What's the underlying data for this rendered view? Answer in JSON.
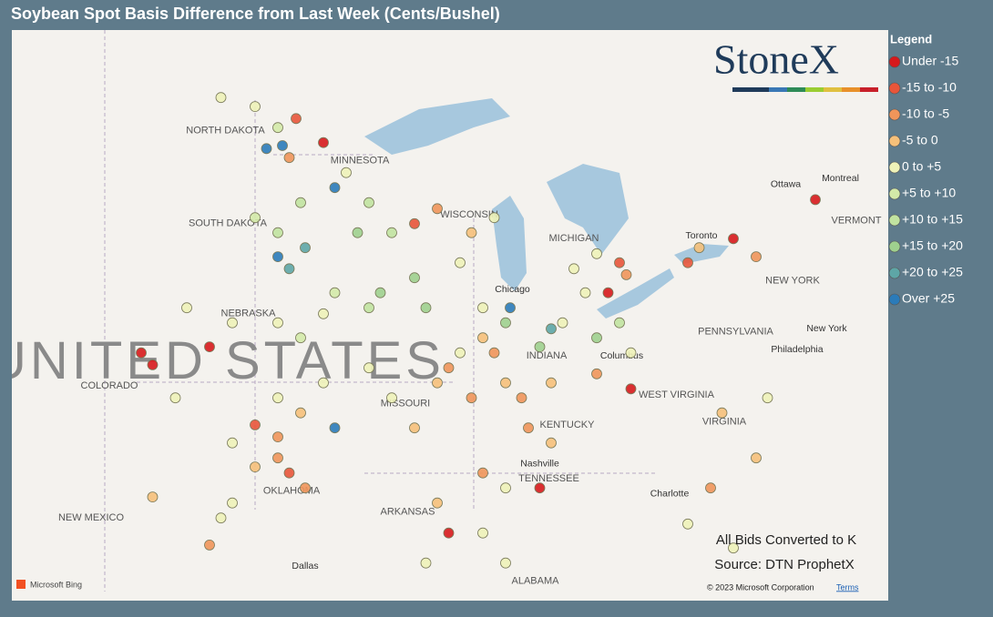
{
  "title": "Soybean Spot Basis Difference from Last Week (Cents/Bushel)",
  "legend": {
    "title": "Legend",
    "items": [
      {
        "label": "Under -15",
        "color": "#d7191c"
      },
      {
        "label": "-15 to -10",
        "color": "#e8553a"
      },
      {
        "label": "-10 to -5",
        "color": "#f0955a"
      },
      {
        "label": "-5 to 0",
        "color": "#f6c07a"
      },
      {
        "label": "0 to +5",
        "color": "#eef2b8"
      },
      {
        "label": "+5 to +10",
        "color": "#d4eaa8"
      },
      {
        "label": "+10 to +15",
        "color": "#c1e3a0"
      },
      {
        "label": "+15 to +20",
        "color": "#9fd08e"
      },
      {
        "label": "+20 to +25",
        "color": "#5ea6a6"
      },
      {
        "label": "Over +25",
        "color": "#2b7bb9"
      }
    ]
  },
  "logo": "StoneX",
  "notes": [
    "All Bids Converted to K",
    "Source: DTN ProphetX"
  ],
  "attribution": {
    "provider": "Microsoft Bing",
    "copyright": "© 2023 Microsoft Corporation",
    "terms": "Terms"
  },
  "country_label": {
    "text": "UNITED STATES",
    "lon": -100.7,
    "lat": 39.6
  },
  "labels": [
    {
      "text": "NORTH DAKOTA",
      "lon": -100.3,
      "lat": 47.4
    },
    {
      "text": "MINNESOTA",
      "lon": -94.4,
      "lat": 46.4
    },
    {
      "text": "SOUTH DAKOTA",
      "lon": -100.2,
      "lat": 44.3
    },
    {
      "text": "WISCONSIN",
      "lon": -89.6,
      "lat": 44.6
    },
    {
      "text": "NEBRASKA",
      "lon": -99.3,
      "lat": 41.3
    },
    {
      "text": "COLORADO",
      "lon": -105.4,
      "lat": 38.9
    },
    {
      "text": "MISSOURI",
      "lon": -92.4,
      "lat": 38.3
    },
    {
      "text": "OKLAHOMA",
      "lon": -97.4,
      "lat": 35.4
    },
    {
      "text": "ARKANSAS",
      "lon": -92.3,
      "lat": 34.7
    },
    {
      "text": "TENNESSEE",
      "lon": -86.1,
      "lat": 35.8
    },
    {
      "text": "KENTUCKY",
      "lon": -85.3,
      "lat": 37.6
    },
    {
      "text": "INDIANA",
      "lon": -86.2,
      "lat": 39.9
    },
    {
      "text": "WEST VIRGINIA",
      "lon": -80.5,
      "lat": 38.6
    },
    {
      "text": "VIRGINIA",
      "lon": -78.4,
      "lat": 37.7
    },
    {
      "text": "PENNSYLVANIA",
      "lon": -77.9,
      "lat": 40.7
    },
    {
      "text": "NEW YORK",
      "lon": -75.4,
      "lat": 42.4
    },
    {
      "text": "NEW MEXICO",
      "lon": -106.2,
      "lat": 34.5
    },
    {
      "text": "ALABAMA",
      "lon": -86.7,
      "lat": 32.4
    },
    {
      "text": "MICHIGAN",
      "lon": -85.0,
      "lat": 43.8
    },
    {
      "text": "VERMONT",
      "lon": -72.6,
      "lat": 44.4
    },
    {
      "text": "Chicago",
      "lon": -87.7,
      "lat": 42.1
    },
    {
      "text": "Ottawa",
      "lon": -75.7,
      "lat": 45.6
    },
    {
      "text": "Montreal",
      "lon": -73.3,
      "lat": 45.8
    },
    {
      "text": "Toronto",
      "lon": -79.4,
      "lat": 43.9
    },
    {
      "text": "Columbus",
      "lon": -82.9,
      "lat": 39.9
    },
    {
      "text": "Nashville",
      "lon": -86.5,
      "lat": 36.3
    },
    {
      "text": "Dallas",
      "lon": -96.8,
      "lat": 32.9
    },
    {
      "text": "Philadelphia",
      "lon": -75.2,
      "lat": 40.1
    },
    {
      "text": "New York",
      "lon": -73.9,
      "lat": 40.8
    },
    {
      "text": "Charlotte",
      "lon": -80.8,
      "lat": 35.3
    }
  ],
  "points": [
    [
      -100.5,
      48.5,
      4
    ],
    [
      -99,
      48.2,
      4
    ],
    [
      -98,
      47.5,
      5
    ],
    [
      -97.5,
      46.5,
      2
    ],
    [
      -97.2,
      47.8,
      1
    ],
    [
      -98.5,
      46.8,
      9
    ],
    [
      -97.8,
      46.9,
      9
    ],
    [
      -99,
      44.5,
      5
    ],
    [
      -98,
      44,
      6
    ],
    [
      -97,
      45,
      6
    ],
    [
      -96.8,
      43.5,
      8
    ],
    [
      -98,
      43.2,
      9
    ],
    [
      -97.5,
      42.8,
      8
    ],
    [
      -95,
      46,
      4
    ],
    [
      -94,
      45,
      6
    ],
    [
      -95.5,
      45.5,
      9
    ],
    [
      -96,
      47,
      0
    ],
    [
      -93,
      44,
      6
    ],
    [
      -92,
      44.3,
      1
    ],
    [
      -94.5,
      44,
      7
    ],
    [
      -93.5,
      42,
      7
    ],
    [
      -92,
      42.5,
      7
    ],
    [
      -94,
      41.5,
      6
    ],
    [
      -91.5,
      41.5,
      7
    ],
    [
      -95.5,
      42,
      5
    ],
    [
      -89.5,
      44,
      3
    ],
    [
      -90,
      43,
      4
    ],
    [
      -88.5,
      44.5,
      4
    ],
    [
      -91,
      44.8,
      2
    ],
    [
      -98,
      41,
      4
    ],
    [
      -100,
      41,
      4
    ],
    [
      -97,
      40.5,
      5
    ],
    [
      -96,
      41.3,
      4
    ],
    [
      -102,
      41.5,
      4
    ],
    [
      -101,
      40.2,
      0
    ],
    [
      -98,
      38.5,
      4
    ],
    [
      -97,
      38,
      3
    ],
    [
      -99,
      37.6,
      1
    ],
    [
      -96,
      39,
      4
    ],
    [
      -95.5,
      37.5,
      9
    ],
    [
      -98,
      37.2,
      2
    ],
    [
      -100,
      37,
      4
    ],
    [
      -98,
      36.5,
      2
    ],
    [
      -97.5,
      36,
      1
    ],
    [
      -99,
      36.2,
      3
    ],
    [
      -96.8,
      35.5,
      2
    ],
    [
      -100,
      35,
      4
    ],
    [
      -100.5,
      34.5,
      4
    ],
    [
      -101,
      33.6,
      2
    ],
    [
      -93,
      38.5,
      4
    ],
    [
      -91,
      39,
      3
    ],
    [
      -92,
      37.5,
      3
    ],
    [
      -90.5,
      39.5,
      2
    ],
    [
      -94,
      39.5,
      4
    ],
    [
      -89,
      40.5,
      3
    ],
    [
      -88.5,
      40,
      2
    ],
    [
      -90,
      40,
      4
    ],
    [
      -88,
      41,
      7
    ],
    [
      -89.5,
      38.5,
      2
    ],
    [
      -88,
      39,
      3
    ],
    [
      -87.8,
      41.5,
      9
    ],
    [
      -89,
      41.5,
      4
    ],
    [
      -86.5,
      40.2,
      7
    ],
    [
      -86,
      39,
      3
    ],
    [
      -87.3,
      38.5,
      2
    ],
    [
      -85.5,
      41,
      4
    ],
    [
      -86,
      40.8,
      8
    ],
    [
      -84,
      40.5,
      7
    ],
    [
      -83,
      41,
      6
    ],
    [
      -82.5,
      40,
      4
    ],
    [
      -84,
      39.3,
      2
    ],
    [
      -82.5,
      38.8,
      0
    ],
    [
      -85,
      42.8,
      4
    ],
    [
      -84,
      43.3,
      4
    ],
    [
      -83.5,
      42,
      0
    ],
    [
      -83,
      43,
      1
    ],
    [
      -82.7,
      42.6,
      2
    ],
    [
      -84.5,
      42,
      4
    ],
    [
      -80,
      43,
      1
    ],
    [
      -79.5,
      43.5,
      3
    ],
    [
      -78,
      43.8,
      0
    ],
    [
      -77,
      43.2,
      2
    ],
    [
      -74.4,
      45.1,
      0
    ],
    [
      -86,
      37,
      3
    ],
    [
      -87,
      37.5,
      2
    ],
    [
      -86.5,
      35.5,
      0
    ],
    [
      -88,
      35.5,
      4
    ],
    [
      -89,
      36,
      2
    ],
    [
      -91,
      35,
      3
    ],
    [
      -90.5,
      34,
      0
    ],
    [
      -91.5,
      33,
      4
    ],
    [
      -78.5,
      38,
      3
    ],
    [
      -77,
      36.5,
      3
    ],
    [
      -79,
      35.5,
      2
    ],
    [
      -80,
      34.3,
      4
    ],
    [
      -78,
      33.5,
      4
    ],
    [
      -76.5,
      38.5,
      4
    ],
    [
      -88,
      33,
      4
    ],
    [
      -89,
      34,
      4
    ],
    [
      -103.5,
      35.2,
      3
    ],
    [
      -102.5,
      38.5,
      4
    ],
    [
      -104,
      40,
      0
    ],
    [
      -103.5,
      39.6,
      0
    ]
  ]
}
